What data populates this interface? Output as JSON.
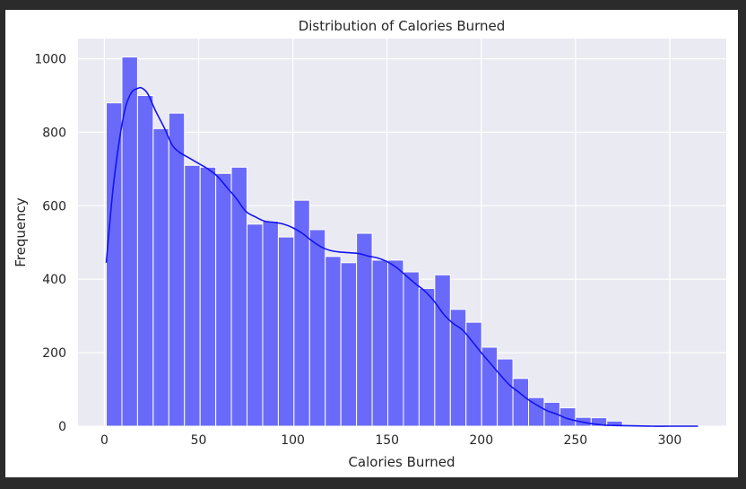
{
  "chart_data": {
    "type": "bar",
    "title": "Distribution of Calories Burned",
    "xlabel": "Calories Burned",
    "ylabel": "Frequency",
    "xlim": [
      -14,
      330
    ],
    "ylim": [
      0,
      1055
    ],
    "xticks": [
      0,
      50,
      100,
      150,
      200,
      250,
      300
    ],
    "yticks": [
      0,
      200,
      400,
      600,
      800,
      1000
    ],
    "grid": true,
    "colors": {
      "bar": "#6a6afa",
      "kde": "#1414f0",
      "plot_bg": "#eaeaf2",
      "grid": "#ffffff"
    },
    "bin_edges": [
      1,
      9.3,
      17.6,
      25.9,
      34.2,
      42.5,
      50.8,
      59.1,
      67.4,
      75.7,
      84,
      92.3,
      100.6,
      108.9,
      117.2,
      125.5,
      133.8,
      142.1,
      150.4,
      158.7,
      167,
      175.3,
      183.6,
      191.9,
      200.2,
      208.5,
      216.8,
      225.1,
      233.4,
      241.7,
      250,
      258.3,
      266.6,
      274.9
    ],
    "counts": [
      880,
      1005,
      900,
      810,
      852,
      710,
      705,
      688,
      705,
      550,
      558,
      515,
      615,
      535,
      462,
      445,
      525,
      452,
      452,
      420,
      375,
      412,
      318,
      283,
      215,
      183,
      130,
      78,
      65,
      50,
      24,
      23,
      14
    ],
    "kde": {
      "x": [
        1,
        5,
        10,
        14,
        18,
        20,
        23,
        27,
        32,
        36,
        40,
        45,
        50,
        55,
        60,
        65,
        70,
        75,
        80,
        85,
        90,
        95,
        100,
        105,
        110,
        115,
        120,
        125,
        130,
        135,
        140,
        145,
        150,
        155,
        160,
        165,
        170,
        175,
        180,
        185,
        190,
        195,
        200,
        205,
        210,
        215,
        220,
        225,
        230,
        235,
        240,
        245,
        250,
        255,
        260,
        265,
        270,
        280,
        290,
        300,
        315
      ],
      "y": [
        445,
        665,
        840,
        905,
        920,
        920,
        905,
        860,
        810,
        765,
        745,
        730,
        715,
        700,
        680,
        650,
        620,
        585,
        570,
        558,
        555,
        550,
        540,
        525,
        505,
        488,
        478,
        474,
        472,
        470,
        463,
        458,
        448,
        432,
        410,
        388,
        368,
        340,
        305,
        280,
        262,
        232,
        200,
        170,
        140,
        112,
        92,
        72,
        56,
        42,
        33,
        22,
        15,
        10,
        6,
        3,
        2,
        1,
        0,
        0,
        0
      ]
    }
  }
}
